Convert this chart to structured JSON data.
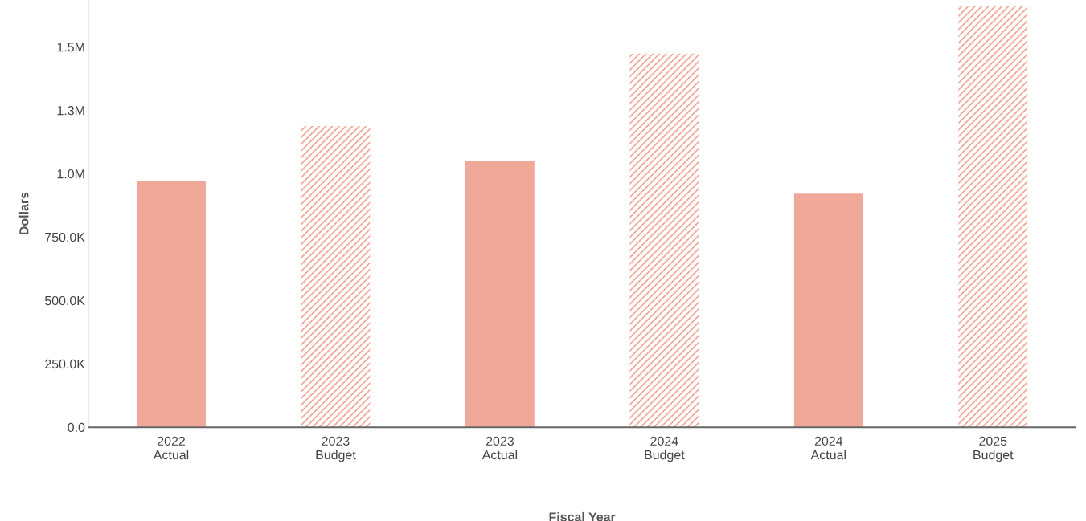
{
  "chart_data": {
    "type": "bar",
    "xlabel": "Fiscal Year",
    "ylabel": "Dollars",
    "categories": [
      "2022\nActual",
      "2023\nBudget",
      "2023\nActual",
      "2024\nBudget",
      "2024\nActual",
      "2025\nBudget"
    ],
    "series": [
      {
        "color": "#f0a899",
        "values": [
          972000,
          null,
          1051000,
          null,
          921000,
          null
        ]
      },
      {
        "color": "#f0a899",
        "values": [
          null,
          1188000,
          null,
          1474000,
          null,
          1661000
        ]
      }
    ],
    "ylim": [
      0,
      1685000
    ],
    "yticks": [
      {
        "value": 0,
        "label": "0.0"
      },
      {
        "value": 250000,
        "label": "250.0K"
      },
      {
        "value": 500000,
        "label": "500.0K"
      },
      {
        "value": 750000,
        "label": "750.0K"
      },
      {
        "value": 1000000,
        "label": "1.0M"
      },
      {
        "value": 1250000,
        "label": "1.3M"
      },
      {
        "value": 1500000,
        "label": "1.5M"
      }
    ],
    "grid": false,
    "legend": false
  }
}
